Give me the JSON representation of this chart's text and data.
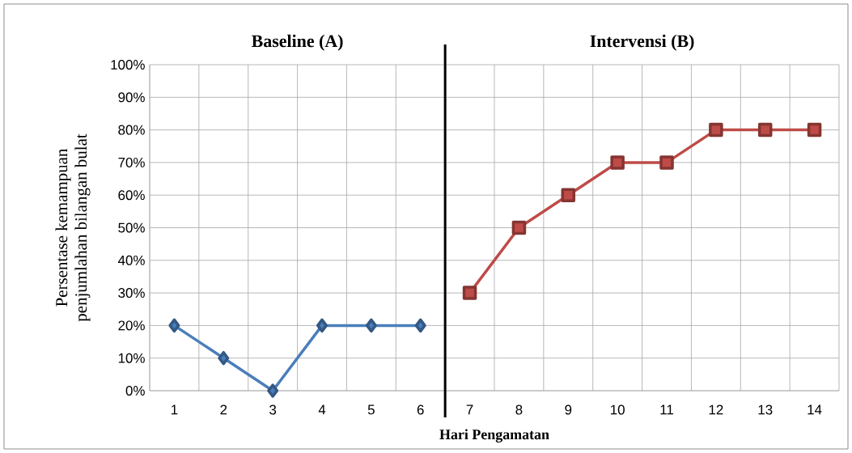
{
  "chart_data": {
    "type": "line",
    "xlabel": "Hari Pengamatan",
    "ylabel": "Persentase kemampuan penjumlahan bilangan bulat",
    "annotations": [
      "Baseline (A)",
      "Intervensi (B)"
    ],
    "x": [
      1,
      2,
      3,
      4,
      5,
      6,
      7,
      8,
      9,
      10,
      11,
      12,
      13,
      14
    ],
    "series": [
      {
        "color": "#4a7ebb",
        "marker": "diamond",
        "values": [
          20,
          10,
          0,
          20,
          20,
          20,
          null,
          null,
          null,
          null,
          null,
          null,
          null,
          null
        ]
      },
      {
        "color": "#be4b48",
        "marker": "square",
        "values": [
          null,
          null,
          null,
          null,
          null,
          null,
          30,
          50,
          60,
          70,
          70,
          80,
          80,
          80
        ]
      }
    ],
    "xlim": [
      0.5,
      14.5
    ],
    "xticks": [
      1,
      2,
      3,
      4,
      5,
      6,
      7,
      8,
      9,
      10,
      11,
      12,
      13,
      14
    ],
    "ylim": [
      0,
      100
    ],
    "yticks": [
      {
        "value": 0,
        "label": "0%"
      },
      {
        "value": 10,
        "label": "10%"
      },
      {
        "value": 20,
        "label": "20%"
      },
      {
        "value": 30,
        "label": "30%"
      },
      {
        "value": 40,
        "label": "40%"
      },
      {
        "value": 50,
        "label": "50%"
      },
      {
        "value": 60,
        "label": "60%"
      },
      {
        "value": 70,
        "label": "70%"
      },
      {
        "value": 80,
        "label": "80%"
      },
      {
        "value": 90,
        "label": "90%"
      },
      {
        "value": 100,
        "label": "100%"
      }
    ],
    "ref_lines": [
      {
        "axis": "x",
        "value": 6.5,
        "color": "#000000"
      }
    ],
    "grid": true,
    "line_style": "solid"
  }
}
